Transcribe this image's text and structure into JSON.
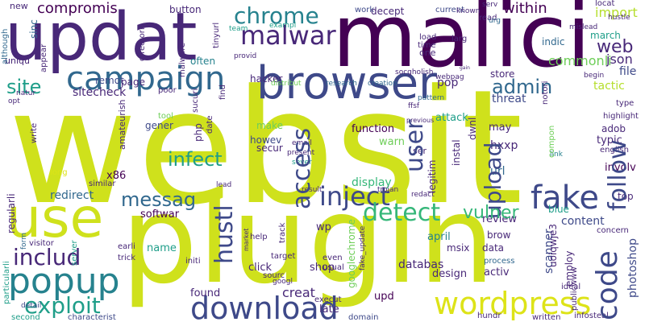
{
  "words": {
    "websit": "websit",
    "plugin": "plugin",
    "malici": "malici",
    "updat": "updat",
    "browser": "browser",
    "use": "use",
    "campaign": "campaign",
    "popup": "popup",
    "download": "download",
    "wordpress": "wordpress",
    "fake": "fake",
    "code": "code",
    "malwar": "malwar",
    "inject": "inject",
    "detect": "detect",
    "chrome": "chrome",
    "includ": "includ",
    "exploit": "exploit",
    "messag": "messag",
    "admin": "admin",
    "site": "site",
    "infect": "infect",
    "access": "access",
    "user": "user",
    "upload": "upload",
    "follow": "follow",
    "hustl": "hustl",
    "vulner": "vulner",
    "compromis": "compromis",
    "web": "web",
    "import": "import",
    "within": "within",
    "json": "json",
    "commonli": "commonli",
    "threat": "threat",
    "tactic": "tactic",
    "file": "file",
    "sitecheck": "sitecheck",
    "remot": "remot",
    "x86": "x86",
    "redirect": "redirect",
    "softwar": "softwar",
    "display": "display",
    "content": "content",
    "review": "review",
    "databas": "databas",
    "design": "design",
    "activ": "activ",
    "upd": "upd",
    "found": "found",
    "creat": "creat",
    "late": "late",
    "name": "name",
    "click": "click",
    "shop": "shop",
    "wp": "wp",
    "april": "april",
    "msix": "msix",
    "data": "data",
    "blue": "blue",
    "top": "top",
    "typic": "typic",
    "involv": "involv",
    "url": "url",
    "hxxp": "hxxp",
    "may": "may",
    "pop": "pop",
    "store": "store",
    "function": "function",
    "warn": "warn",
    "attack": "attack",
    "howev": "howev",
    "secur": "secur",
    "make": "make",
    "gener": "gener",
    "hacker": "hacker",
    "button": "button",
    "page": "page",
    "often": "often",
    "new": "new",
    "uniqu": "uniqu",
    "one": "one",
    "load": "load",
    "time": "time",
    "decept": "decept",
    "work": "work",
    "current": "current",
    "march": "march",
    "indic": "indic",
    "highlight": "highlight",
    "adob": "adob",
    "english": "english",
    "link": "link",
    "concern": "concern",
    "process": "process",
    "ideal": "ideal",
    "written": "written",
    "infosteal": "infosteal",
    "hundr": "hundr",
    "domain": "domain",
    "execut": "execut",
    "sourc": "sourc",
    "target": "target",
    "googl": "googl",
    "even": "even",
    "usual": "usual",
    "help": "help",
    "initi": "initi",
    "second": "second",
    "characterist": "characterist",
    "detail": "detail",
    "earli": "earli",
    "trick": "trick",
    "visitor": "visitor",
    "similar": "similar",
    "long": "long",
    "tool": "tool",
    "poor": "poor",
    "opt": "opt",
    "natur": "natur",
    "provid": "provid",
    "team": "team",
    "exampl": "exampl",
    "distribut": "distribut",
    "research": "research",
    "creation": "creation",
    "socgholish": "socgholish",
    "webpag": "webpag",
    "pattern": "pattern",
    "ffsf": "ffsf",
    "previous": "previous",
    "ser": "ser",
    "sever": "sever",
    "present": "present",
    "email": "email",
    "lead": "lead",
    "result": "result",
    "trojan": "trojan",
    "redact": "redact",
    "brow": "brow",
    "misslead": "mislead",
    "begin": "begin",
    "gain": "gain",
    "locat": "locat",
    "hustle": "hustle",
    "type": "type",
    "read": "read",
    "known": "known",
    "larg": "larg",
    "urg": "urg",
    "serv": "serv",
    "regularli": "regularli",
    "although": "although",
    "sinc": "sinc",
    "appear": "appear",
    "malware": "malware",
    "directori": "directori",
    "tinyurl": "tinyurl",
    "sucuri": "sucuri",
    "find": "find",
    "php": "php",
    "date": "date",
    "amateurish": "amateurish",
    "write": "write",
    "googlechrome": "googlechrome",
    "fake_update": "fake_update",
    "legitim": "legitim",
    "instal": "instal",
    "dwnl": "dwnl",
    "compon": "compon",
    "scanner": "scanner",
    "employ": "employ",
    "photoshop": "photoshop",
    "server": "server",
    "form": "form",
    "particularli": "particularli",
    "notori": "notori",
    "uoiqwje3": "uoiqwje3",
    "publicwww": "publicwww",
    "track": "track",
    "market": "market"
  },
  "colors": {
    "c1": "#440154",
    "c2": "#482878",
    "c3": "#3e4989",
    "c4": "#31688e",
    "c5": "#26828e",
    "c6": "#1f9e89",
    "c7": "#35b779",
    "c8": "#6ece58",
    "c9": "#b5de2b",
    "c10": "#dde318",
    "c11": "#cfe11c"
  }
}
